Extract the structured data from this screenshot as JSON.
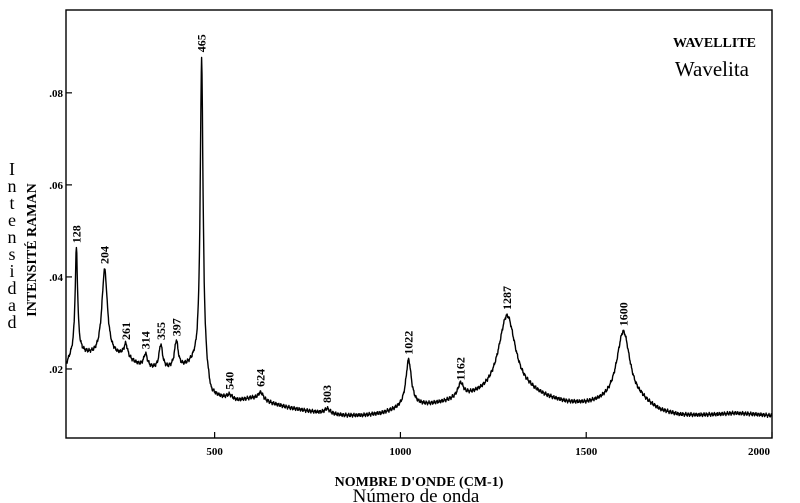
{
  "chart_data": {
    "type": "line",
    "title": "WAVELLITE",
    "subtitle": "Wavelita",
    "xlabel": "NOMBRE D'ONDE (CM-1)",
    "xlabel_secondary": "Número de onda",
    "ylabel": "INTENSITÉ RAMAN",
    "ylabel_secondary": "Intensidad",
    "xlim": [
      100,
      2000
    ],
    "ylim": [
      0.005,
      0.098
    ],
    "x_ticks": [
      500,
      1000,
      1500,
      2000
    ],
    "x_tick_labels": [
      "500",
      "1000",
      "1500",
      "2000"
    ],
    "y_ticks": [
      0.02,
      0.04,
      0.06,
      0.08
    ],
    "y_tick_labels": [
      ".02",
      ".04",
      ".06",
      ".08"
    ],
    "grid": false,
    "series": [
      {
        "color": "#000000",
        "baseline": [
          [
            100,
            0.0205
          ],
          [
            110,
            0.022
          ],
          [
            125,
            0.0235
          ],
          [
            180,
            0.0225
          ],
          [
            250,
            0.0225
          ],
          [
            300,
            0.0205
          ],
          [
            350,
            0.0195
          ],
          [
            410,
            0.02
          ],
          [
            445,
            0.021
          ],
          [
            470,
            0.02
          ],
          [
            490,
            0.014
          ],
          [
            520,
            0.0135
          ],
          [
            560,
            0.013
          ],
          [
            600,
            0.0135
          ],
          [
            650,
            0.0125
          ],
          [
            700,
            0.0115
          ],
          [
            750,
            0.0108
          ],
          [
            800,
            0.0102
          ],
          [
            850,
            0.0098
          ],
          [
            900,
            0.0098
          ],
          [
            950,
            0.0102
          ],
          [
            1000,
            0.0112
          ],
          [
            1040,
            0.0118
          ],
          [
            1080,
            0.012
          ],
          [
            1120,
            0.0125
          ],
          [
            1180,
            0.0135
          ],
          [
            1230,
            0.0138
          ],
          [
            1350,
            0.014
          ],
          [
            1400,
            0.013
          ],
          [
            1450,
            0.0122
          ],
          [
            1500,
            0.012
          ],
          [
            1550,
            0.0122
          ],
          [
            1650,
            0.0122
          ],
          [
            1700,
            0.0105
          ],
          [
            1750,
            0.0098
          ],
          [
            1800,
            0.0098
          ],
          [
            1850,
            0.01
          ],
          [
            1900,
            0.0103
          ],
          [
            1950,
            0.0101
          ],
          [
            2000,
            0.0098
          ]
        ],
        "peaks": [
          {
            "x": 128,
            "y": 0.046,
            "label": "128"
          },
          {
            "x": 204,
            "y": 0.0415,
            "label": "204"
          },
          {
            "x": 261,
            "y": 0.025,
            "label": "261"
          },
          {
            "x": 314,
            "y": 0.023,
            "label": "314"
          },
          {
            "x": 355,
            "y": 0.025,
            "label": "355"
          },
          {
            "x": 397,
            "y": 0.0258,
            "label": "397"
          },
          {
            "x": 465,
            "y": 0.0875,
            "label": "465"
          },
          {
            "x": 540,
            "y": 0.0142,
            "label": "540"
          },
          {
            "x": 624,
            "y": 0.0148,
            "label": "624"
          },
          {
            "x": 803,
            "y": 0.0113,
            "label": "803"
          },
          {
            "x": 1022,
            "y": 0.0218,
            "label": "1022"
          },
          {
            "x": 1162,
            "y": 0.0162,
            "label": "1162"
          },
          {
            "x": 1287,
            "y": 0.0315,
            "label": "1287"
          },
          {
            "x": 1600,
            "y": 0.028,
            "label": "1600"
          }
        ]
      }
    ]
  }
}
